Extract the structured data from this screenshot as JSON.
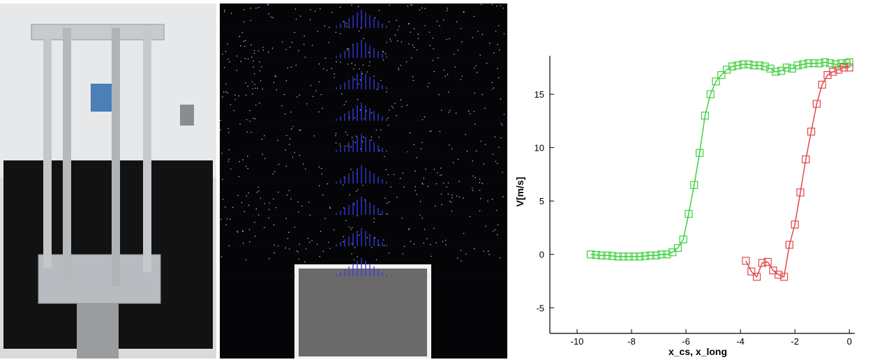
{
  "chart_data": {
    "type": "line",
    "xlabel": "x_cs, x_long",
    "ylabel": "V[m/s]",
    "xlim": [
      -11.0,
      0.2
    ],
    "ylim": [
      -7.4,
      18.6
    ],
    "xticks": [
      -10,
      -8,
      -6,
      -4,
      -2,
      0
    ],
    "yticks": [
      -5,
      0,
      5,
      10,
      15
    ],
    "marker": "square",
    "series": [
      {
        "color": "#3fcf3f",
        "x": [
          -9.5,
          -9.3,
          -9.1,
          -8.9,
          -8.7,
          -8.5,
          -8.3,
          -8.1,
          -7.9,
          -7.7,
          -7.5,
          -7.3,
          -7.1,
          -6.9,
          -6.7,
          -6.5,
          -6.3,
          -6.1,
          -5.9,
          -5.7,
          -5.5,
          -5.3,
          -5.1,
          -4.9,
          -4.7,
          -4.5,
          -4.3,
          -4.1,
          -3.9,
          -3.7,
          -3.5,
          -3.3,
          -3.1,
          -2.9,
          -2.7,
          -2.5,
          -2.3,
          -2.1,
          -1.9,
          -1.7,
          -1.5,
          -1.3,
          -1.1,
          -0.9,
          -0.7,
          -0.5,
          -0.3,
          -0.1,
          0
        ],
        "values": [
          0,
          -0.05,
          -0.1,
          -0.1,
          -0.15,
          -0.2,
          -0.2,
          -0.2,
          -0.2,
          -0.2,
          -0.15,
          -0.1,
          -0.1,
          0,
          0,
          0.2,
          0.6,
          1.4,
          3.8,
          6.5,
          9.5,
          13,
          15,
          16.2,
          16.8,
          17.3,
          17.6,
          17.7,
          17.8,
          17.8,
          17.7,
          17.7,
          17.6,
          17.4,
          17.1,
          17.2,
          17.5,
          17.4,
          17.7,
          17.8,
          17.9,
          17.9,
          17.9,
          18,
          17.9,
          17.8,
          17.9,
          17.9,
          18
        ]
      },
      {
        "color": "#e0474c",
        "x": [
          -3.8,
          -3.6,
          -3.4,
          -3.2,
          -3.0,
          -2.8,
          -2.6,
          -2.4,
          -2.2,
          -2.0,
          -1.8,
          -1.6,
          -1.4,
          -1.2,
          -1.0,
          -0.8,
          -0.6,
          -0.4,
          -0.2,
          0
        ],
        "values": [
          -0.6,
          -1.6,
          -2.1,
          -0.8,
          -0.7,
          -1.5,
          -1.9,
          -2.1,
          0.9,
          2.8,
          5.8,
          8.9,
          11.5,
          14.1,
          15.9,
          16.8,
          17.1,
          17.3,
          17.5,
          17.5
        ]
      }
    ]
  }
}
